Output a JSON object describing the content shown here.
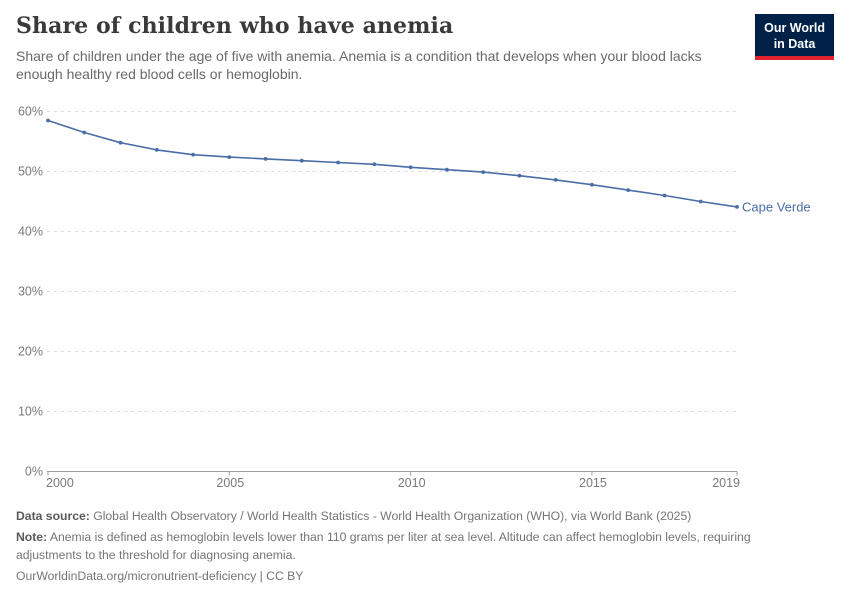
{
  "header": {
    "title": "Share of children who have anemia",
    "subtitle": "Share of children under the age of five with anemia. Anemia is a condition that develops when your blood lacks enough healthy red blood cells or hemoglobin.",
    "logo": {
      "line1": "Our World",
      "line2": "in Data"
    }
  },
  "chart_data": {
    "type": "line",
    "title": "Share of children who have anemia",
    "xlabel": "",
    "ylabel": "",
    "unit": "%",
    "x": [
      2000,
      2001,
      2002,
      2003,
      2004,
      2005,
      2006,
      2007,
      2008,
      2009,
      2010,
      2011,
      2012,
      2013,
      2014,
      2015,
      2016,
      2017,
      2018,
      2019
    ],
    "series": [
      {
        "name": "Cape Verde",
        "values": [
          58.5,
          56.5,
          54.8,
          53.6,
          52.8,
          52.4,
          52.1,
          51.8,
          51.5,
          51.2,
          50.7,
          50.3,
          49.9,
          49.3,
          48.6,
          47.8,
          46.9,
          46.0,
          45.0,
          44.1
        ]
      }
    ],
    "xlim": [
      2000,
      2019
    ],
    "ylim": [
      0,
      60
    ],
    "xticks": [
      2000,
      2005,
      2010,
      2015,
      2019
    ],
    "yticks": [
      0,
      10,
      20,
      30,
      40,
      50,
      60
    ],
    "ytick_suffix": "%",
    "grid": true,
    "legend_position": "end-of-line-label",
    "colors": {
      "line": "#4a6da7",
      "grid": "#dcdcdc",
      "axis": "#9c9c9c",
      "tick_label": "#7a7a7a"
    }
  },
  "footer": {
    "datasource_label": "Data source:",
    "datasource_text": " Global Health Observatory / World Health Statistics - World Health Organization (WHO), via World Bank (2025)",
    "note_label": "Note:",
    "note_text": " Anemia is defined as hemoglobin levels lower than 110 grams per liter at sea level. Altitude can affect hemoglobin levels, requiring adjustments to the threshold for diagnosing anemia.",
    "license": "OurWorldinData.org/micronutrient-deficiency | CC BY"
  }
}
